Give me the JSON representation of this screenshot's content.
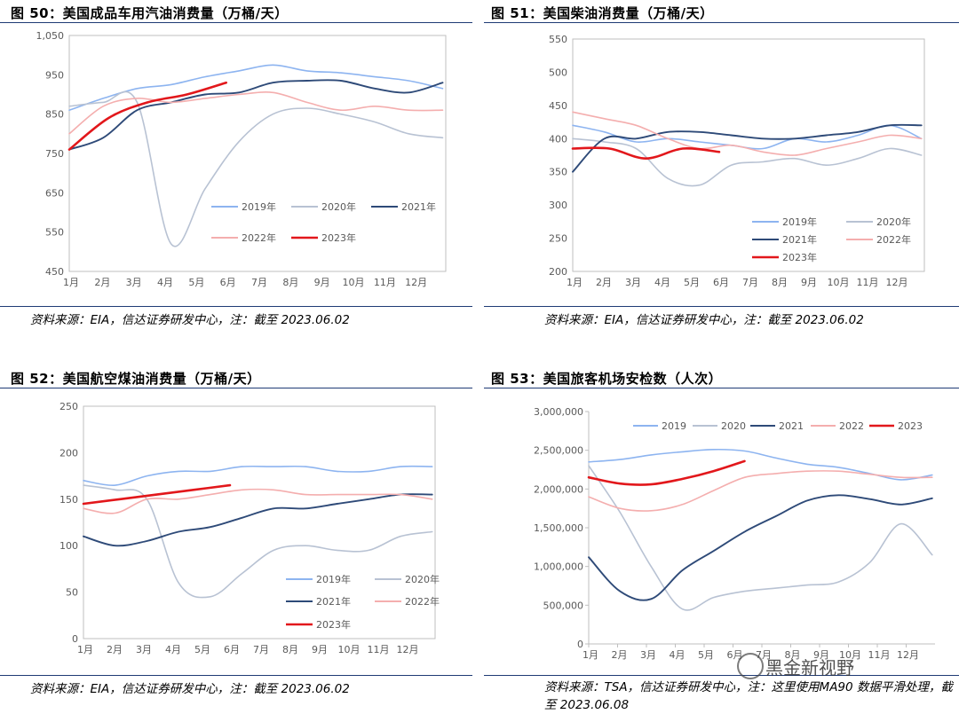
{
  "colors": {
    "2019": "#8db4f0",
    "2020": "#b8c2d3",
    "2021": "#2e4a78",
    "2022": "#f4aeae",
    "2023": "#e2171b",
    "rule": "#1f3b75"
  },
  "panels": [
    {
      "title": "图 50：美国成品车用汽油消费量（万桶/天）",
      "source": "资料来源：EIA，信达证券研发中心，注：截至 2023.06.02"
    },
    {
      "title": "图 51：美国柴油消费量（万桶/天）",
      "source": "资料来源：EIA，信达证券研发中心，注：截至 2023.06.02"
    },
    {
      "title": "图 52：美国航空煤油消费量（万桶/天）",
      "source": "资料来源：EIA，信达证券研发中心，注：截至 2023.06.02"
    },
    {
      "title": "图 53：美国旅客机场安检数（人次）",
      "source": "资料来源：TSA，信达证券研发中心，注：这里使用MA90 数据平滑处理，截至 2023.06.08"
    }
  ],
  "watermark": "黑金新视野",
  "chart_data": [
    {
      "type": "line",
      "x_categories": [
        "1月",
        "2月",
        "3月",
        "4月",
        "5月",
        "6月",
        "7月",
        "8月",
        "9月",
        "10月",
        "11月",
        "12月"
      ],
      "yticks": [
        "450",
        "550",
        "650",
        "750",
        "850",
        "950",
        "1,050"
      ],
      "ylim": [
        450,
        1050
      ],
      "legend": [
        "2019年",
        "2020年",
        "2021年",
        "2022年",
        "2023年"
      ],
      "series": [
        {
          "name": "2019年",
          "values": [
            860,
            890,
            915,
            925,
            945,
            960,
            975,
            960,
            955,
            945,
            935,
            915
          ]
        },
        {
          "name": "2020年",
          "values": [
            870,
            880,
            880,
            520,
            660,
            780,
            850,
            865,
            850,
            830,
            800,
            790
          ]
        },
        {
          "name": "2021年",
          "values": [
            760,
            790,
            860,
            880,
            900,
            905,
            930,
            935,
            935,
            915,
            905,
            930
          ]
        },
        {
          "name": "2022年",
          "values": [
            800,
            870,
            890,
            880,
            890,
            900,
            905,
            880,
            860,
            870,
            860,
            860
          ]
        },
        {
          "name": "2023年",
          "values": [
            760,
            840,
            880,
            900,
            930
          ],
          "x_end_month": 5.9
        }
      ]
    },
    {
      "type": "line",
      "x_categories": [
        "1月",
        "2月",
        "3月",
        "4月",
        "5月",
        "6月",
        "7月",
        "8月",
        "9月",
        "10月",
        "11月",
        "12月"
      ],
      "yticks": [
        "200",
        "250",
        "300",
        "350",
        "400",
        "450",
        "500",
        "550"
      ],
      "ylim": [
        200,
        550
      ],
      "legend": [
        "2019年",
        "2020年",
        "2021年",
        "2022年",
        "2023年"
      ],
      "series": [
        {
          "name": "2019年",
          "values": [
            420,
            410,
            395,
            400,
            395,
            390,
            385,
            400,
            395,
            405,
            420,
            400
          ]
        },
        {
          "name": "2020年",
          "values": [
            400,
            395,
            385,
            340,
            330,
            360,
            365,
            370,
            360,
            370,
            385,
            375
          ]
        },
        {
          "name": "2021年",
          "values": [
            350,
            400,
            400,
            410,
            410,
            405,
            400,
            400,
            405,
            410,
            420,
            420
          ]
        },
        {
          "name": "2022年",
          "values": [
            440,
            430,
            420,
            400,
            385,
            390,
            380,
            375,
            385,
            395,
            405,
            400
          ]
        },
        {
          "name": "2023年",
          "values": [
            385,
            385,
            370,
            385,
            380
          ],
          "x_end_month": 5.9
        }
      ]
    },
    {
      "type": "line",
      "x_categories": [
        "1月",
        "2月",
        "3月",
        "4月",
        "5月",
        "6月",
        "7月",
        "8月",
        "9月",
        "10月",
        "11月",
        "12月"
      ],
      "yticks": [
        "0",
        "50",
        "100",
        "150",
        "200",
        "250"
      ],
      "ylim": [
        0,
        250
      ],
      "legend": [
        "2019年",
        "2020年",
        "2021年",
        "2022年",
        "2023年"
      ],
      "series": [
        {
          "name": "2019年",
          "values": [
            170,
            165,
            175,
            180,
            180,
            185,
            185,
            185,
            180,
            180,
            185,
            185
          ]
        },
        {
          "name": "2020年",
          "values": [
            165,
            160,
            150,
            60,
            45,
            70,
            95,
            100,
            95,
            95,
            110,
            115
          ]
        },
        {
          "name": "2021年",
          "values": [
            110,
            100,
            105,
            115,
            120,
            130,
            140,
            140,
            145,
            150,
            155,
            155
          ]
        },
        {
          "name": "2022年",
          "values": [
            140,
            135,
            150,
            150,
            155,
            160,
            160,
            155,
            155,
            155,
            155,
            150
          ]
        },
        {
          "name": "2023年",
          "values": [
            145,
            150,
            155,
            160,
            165
          ],
          "x_end_month": 5.9
        }
      ]
    },
    {
      "type": "line",
      "x_categories": [
        "1月",
        "2月",
        "3月",
        "4月",
        "5月",
        "6月",
        "7月",
        "8月",
        "9月",
        "10月",
        "11月",
        "12月"
      ],
      "yticks": [
        "0",
        "500,000",
        "1,000,000",
        "1,500,000",
        "2,000,000",
        "2,500,000",
        "3,000,000"
      ],
      "ylim": [
        0,
        3000000
      ],
      "legend": [
        "2019",
        "2020",
        "2021",
        "2022",
        "2023"
      ],
      "series": [
        {
          "name": "2019",
          "values": [
            2350000,
            2380000,
            2440000,
            2480000,
            2510000,
            2490000,
            2400000,
            2320000,
            2280000,
            2200000,
            2120000,
            2180000
          ]
        },
        {
          "name": "2020",
          "values": [
            2300000,
            1700000,
            1000000,
            450000,
            600000,
            680000,
            720000,
            760000,
            800000,
            1050000,
            1550000,
            1150000
          ]
        },
        {
          "name": "2021",
          "values": [
            1120000,
            680000,
            580000,
            950000,
            1200000,
            1450000,
            1650000,
            1850000,
            1920000,
            1870000,
            1800000,
            1880000
          ]
        },
        {
          "name": "2022",
          "values": [
            1900000,
            1750000,
            1720000,
            1800000,
            1980000,
            2150000,
            2200000,
            2230000,
            2230000,
            2190000,
            2150000,
            2150000
          ]
        },
        {
          "name": "2023",
          "values": [
            2150000,
            2070000,
            2060000,
            2130000,
            2230000,
            2360000
          ],
          "x_end_month": 6.3
        }
      ]
    }
  ]
}
